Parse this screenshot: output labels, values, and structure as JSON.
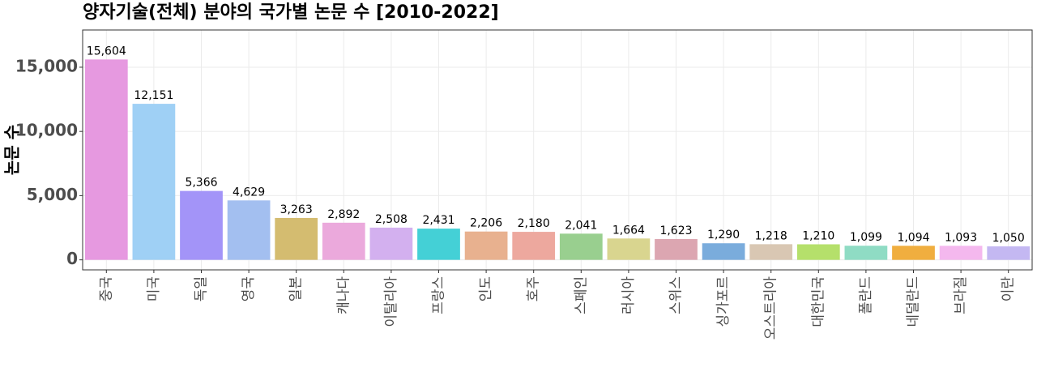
{
  "chart_data": {
    "type": "bar",
    "title": "양자기술(전체) 분야의 국가별 논문 수 [2010-2022]",
    "y_label": "논문 수",
    "categories": [
      "중국",
      "미국",
      "독일",
      "영국",
      "일본",
      "캐나다",
      "이탈리아",
      "프랑스",
      "인도",
      "호주",
      "스페인",
      "러시아",
      "스위스",
      "싱가포르",
      "오스트리아",
      "대한민국",
      "폴란드",
      "네덜란드",
      "브라질",
      "이란"
    ],
    "values": [
      15604,
      12151,
      5366,
      4629,
      3263,
      2892,
      2508,
      2431,
      2206,
      2180,
      2041,
      1664,
      1623,
      1290,
      1218,
      1210,
      1099,
      1094,
      1093,
      1050
    ],
    "value_labels": [
      "15,604",
      "12,151",
      "5,366",
      "4,629",
      "3,263",
      "2,892",
      "2,508",
      "2,431",
      "2,206",
      "2,180",
      "2,041",
      "1,664",
      "1,623",
      "1,290",
      "1,218",
      "1,210",
      "1,099",
      "1,094",
      "1,093",
      "1,050"
    ],
    "colors": [
      "#e699e0",
      "#9fd0f5",
      "#a394f8",
      "#a3bff0",
      "#d4bc70",
      "#eba9dc",
      "#d3b0ef",
      "#44d0d6",
      "#e8b18f",
      "#eda89e",
      "#99cf8f",
      "#d9d58f",
      "#dca6b1",
      "#7aacdc",
      "#d9c7b3",
      "#b5e06b",
      "#8fdcc4",
      "#f0ae3f",
      "#f4b8ee",
      "#c4b8f2"
    ],
    "ylim": [
      -780,
      17900
    ],
    "yticks": [
      {
        "value": 0,
        "label": "0"
      },
      {
        "value": 5000,
        "label": "5,000"
      },
      {
        "value": 10000,
        "label": "10,000"
      },
      {
        "value": 15000,
        "label": "15,000"
      }
    ],
    "grid": true
  }
}
